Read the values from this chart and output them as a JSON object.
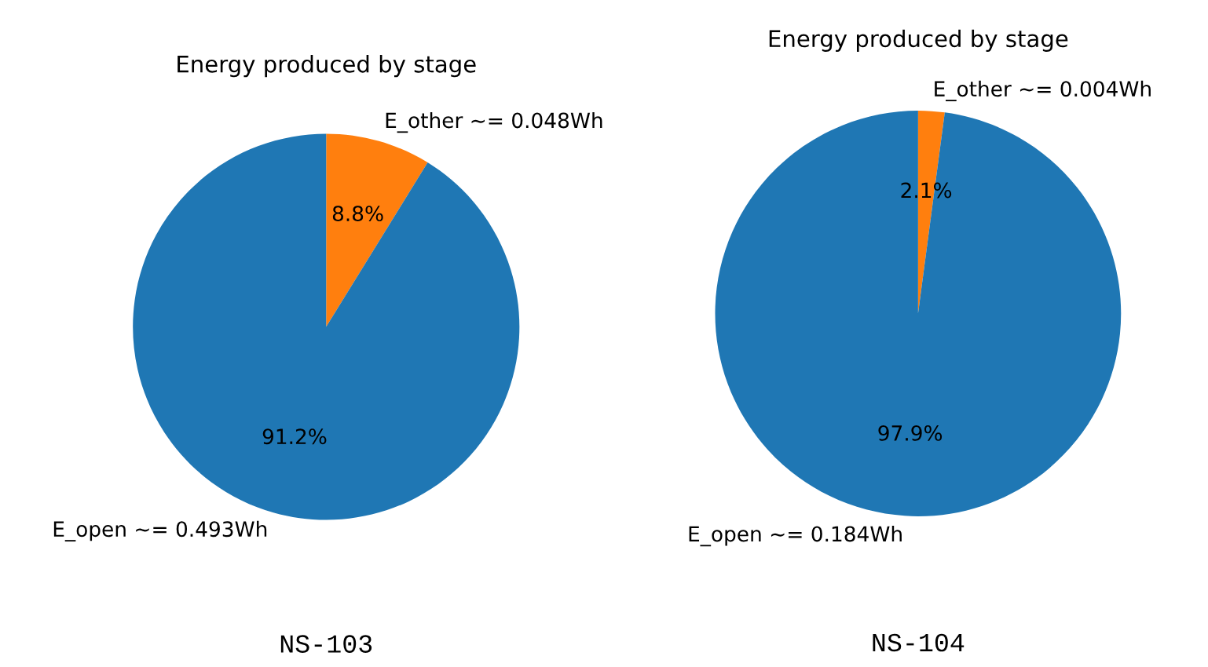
{
  "chart_data": [
    {
      "type": "pie",
      "title": "Energy produced by stage",
      "xlabel": "NS-103",
      "categories": [
        "E_other ~= 0.048Wh",
        "E_open ~= 0.493Wh"
      ],
      "values": [
        8.8,
        91.2
      ],
      "colors": [
        "#ff7f0e",
        "#1f77b4"
      ],
      "value_labels": [
        "8.8%",
        "91.2%"
      ]
    },
    {
      "type": "pie",
      "title": "Energy produced by stage",
      "xlabel": "NS-104",
      "categories": [
        "E_other ~= 0.004Wh",
        "E_open ~= 0.184Wh"
      ],
      "values": [
        2.1,
        97.9
      ],
      "colors": [
        "#ff7f0e",
        "#1f77b4"
      ],
      "value_labels": [
        "2.1%",
        "97.9%"
      ]
    }
  ]
}
